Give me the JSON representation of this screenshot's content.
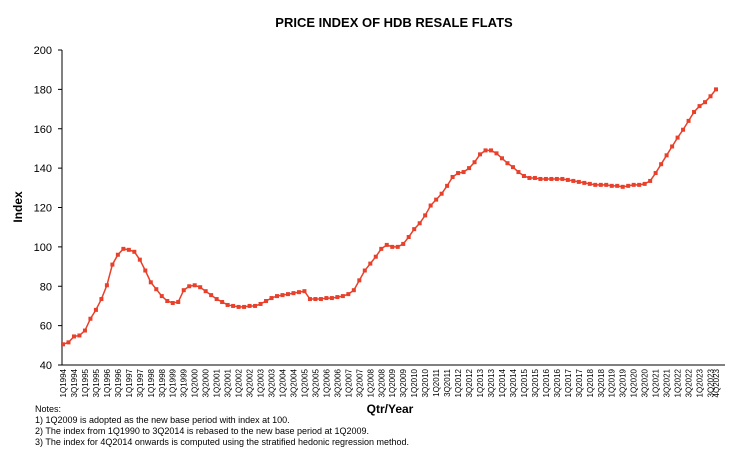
{
  "chart_data": {
    "type": "line",
    "title": "PRICE INDEX OF HDB RESALE FLATS",
    "x_label": "Qtr/Year",
    "y_label": "Index",
    "notes": [
      "Notes:",
      "1) 1Q2009 is adopted as the new base period with index at 100.",
      "2) The index from 1Q1990 to 3Q2014 is rebased to the new base  period at 1Q2009.",
      "3) The index for 4Q2014 onwards is computed using the stratified hedonic regression method."
    ],
    "categories": [
      "1Q1994",
      null,
      "3Q1994",
      null,
      "1Q1995",
      null,
      "3Q1995",
      null,
      "1Q1996",
      null,
      "3Q1996",
      null,
      "1Q1997",
      null,
      "3Q1997",
      null,
      "1Q1998",
      null,
      "3Q1998",
      null,
      "1Q1999",
      null,
      "3Q1999",
      null,
      "1Q2000",
      null,
      "3Q2000",
      null,
      "1Q2001",
      null,
      "3Q2001",
      null,
      "1Q2002",
      null,
      "3Q2002",
      null,
      "1Q2003",
      null,
      "3Q2003",
      null,
      "1Q2004",
      null,
      "3Q2004",
      null,
      "1Q2005",
      null,
      "3Q2005",
      null,
      "1Q2006",
      null,
      "3Q2006",
      null,
      "1Q2007",
      null,
      "3Q2007",
      null,
      "1Q2008",
      null,
      "3Q2008",
      null,
      "1Q2009",
      null,
      "3Q2009",
      null,
      "1Q2010",
      null,
      "3Q2010",
      null,
      "1Q2011",
      null,
      "3Q2011",
      null,
      "1Q2012",
      null,
      "3Q2012",
      null,
      "1Q2013",
      null,
      "3Q2013",
      null,
      "1Q2014",
      null,
      "3Q2014",
      null,
      "1Q2015",
      null,
      "3Q2015",
      null,
      "1Q2016",
      null,
      "3Q2016",
      null,
      "1Q2017",
      null,
      "3Q2017",
      null,
      "1Q2018",
      null,
      "3Q2018",
      null,
      "1Q2019",
      null,
      "3Q2019",
      null,
      "1Q2020",
      null,
      "3Q2020",
      null,
      "1Q2021",
      null,
      "3Q2021",
      null,
      "1Q2022",
      null,
      "3Q2022",
      null,
      "1Q2023",
      null,
      "3Q2023",
      "4Q2023"
    ],
    "series": [
      {
        "name": "Index",
        "color": "#e8402a",
        "values": [
          50.5,
          51.5,
          54.5,
          55.0,
          57.5,
          63.5,
          68.0,
          73.5,
          80.5,
          91.0,
          96.0,
          99.0,
          98.5,
          97.5,
          93.5,
          88.0,
          82.0,
          78.5,
          75.0,
          72.5,
          71.5,
          72.0,
          78.0,
          80.0,
          80.5,
          79.5,
          77.5,
          75.5,
          73.5,
          72.0,
          70.5,
          70.0,
          69.5,
          69.5,
          70.0,
          70.0,
          71.0,
          72.5,
          74.0,
          75.0,
          75.5,
          76.0,
          76.5,
          77.0,
          77.5,
          73.5,
          73.5,
          73.5,
          74.0,
          74.0,
          74.5,
          75.0,
          76.0,
          78.0,
          83.0,
          88.0,
          91.5,
          95.0,
          99.0,
          101.0,
          100.0,
          100.0,
          101.5,
          105.0,
          109.0,
          112.0,
          116.0,
          121.0,
          124.0,
          127.0,
          131.0,
          135.5,
          137.5,
          138.0,
          140.0,
          143.0,
          147.0,
          149.0,
          149.0,
          147.5,
          145.0,
          142.5,
          140.5,
          138.0,
          136.0,
          135.0,
          135.0,
          134.5,
          134.5,
          134.5,
          134.5,
          134.5,
          134.0,
          133.5,
          133.0,
          132.5,
          132.0,
          131.5,
          131.5,
          131.5,
          131.0,
          131.0,
          130.5,
          131.0,
          131.5,
          131.5,
          132.0,
          133.5,
          137.5,
          142.0,
          146.5,
          151.0,
          155.5,
          159.5,
          164.0,
          168.5,
          171.5,
          173.5,
          176.5,
          180.0
        ]
      }
    ],
    "ylim": [
      40,
      200
    ],
    "yticks": [
      40,
      60,
      80,
      100,
      120,
      140,
      160,
      180,
      200
    ]
  }
}
